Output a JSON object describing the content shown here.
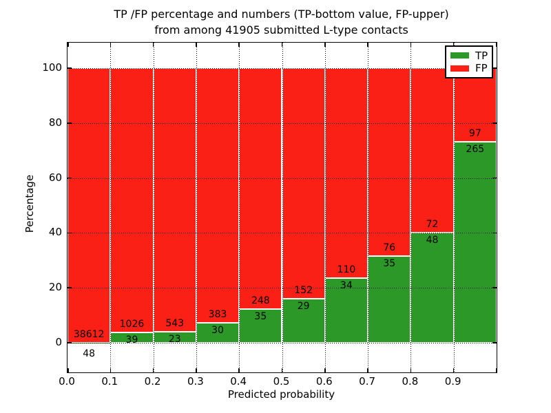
{
  "title": {
    "line1": "TP /FP percentage and numbers (TP-bottom value, FP-upper)",
    "line2": "from among 41905 submitted L-type contacts"
  },
  "chart_data": {
    "type": "bar",
    "stacked": true,
    "normalized_to": "100 percent per bin",
    "title": "TP /FP percentage and numbers (TP-bottom value, FP-upper) from among 41905 submitted L-type contacts",
    "xlabel": "Predicted probability",
    "ylabel": "Percentage",
    "total_contacts": 41905,
    "bin_width": 0.1,
    "bin_starts": [
      0.0,
      0.1,
      0.2,
      0.3,
      0.4,
      0.5,
      0.6,
      0.7,
      0.8,
      0.9
    ],
    "x_tick_labels": [
      "0.0",
      "0.1",
      "0.2",
      "0.3",
      "0.4",
      "0.5",
      "0.6",
      "0.7",
      "0.8",
      "0.9"
    ],
    "y_ticks": [
      0,
      20,
      40,
      60,
      80,
      100
    ],
    "y_tick_labels": [
      "0",
      "20",
      "40",
      "60",
      "80",
      "100"
    ],
    "xlim": [
      0.0,
      1.0
    ],
    "ylim": [
      -10.8,
      109.3
    ],
    "grid": {
      "style": "dotted",
      "color": "#000000",
      "drawn_above_bars": true
    },
    "series": [
      {
        "name": "TP",
        "color": "#2b9828",
        "values": [
          48,
          39,
          23,
          30,
          35,
          29,
          34,
          35,
          48,
          265
        ]
      },
      {
        "name": "FP",
        "color": "#fb2015",
        "values": [
          38612,
          1026,
          543,
          383,
          248,
          152,
          110,
          76,
          72,
          97
        ]
      }
    ],
    "tp_percent_by_bin": [
      0.12,
      3.66,
      4.06,
      7.26,
      12.37,
      16.02,
      23.61,
      31.53,
      40.0,
      73.2
    ],
    "legend": {
      "position": "upper right",
      "entries": [
        {
          "label": "TP",
          "color": "#2b9828"
        },
        {
          "label": "FP",
          "color": "#fb2015"
        }
      ]
    }
  },
  "colors": {
    "tp_green": "#2b9828",
    "fp_red": "#fb2015",
    "axis": "#000000",
    "background": "#ffffff",
    "text": "#000000"
  }
}
